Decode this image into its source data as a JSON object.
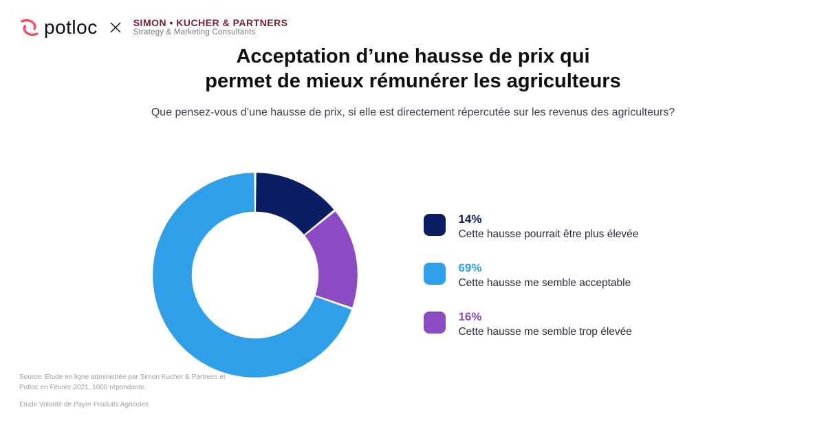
{
  "logos": {
    "potloc_word": "potloc",
    "potloc_mark_color": "#ff4560",
    "sk_line_1": "SIMON • KUCHER & PARTNERS",
    "sk_line_2": "Strategy & Marketing Consultants",
    "sk_color": "#7a1e2e",
    "cross_color": "#0a0a14"
  },
  "title": {
    "line1": "Acceptation d’une hausse de prix qui",
    "line2": "permet de mieux rémunérer les agriculteurs",
    "fontsize": 29,
    "color": "#0f0f0f"
  },
  "subtitle": {
    "text": "Que pensez-vous d’une hausse de prix, si elle est directement répercutée sur les revenus des agriculteurs?",
    "fontsize": 16,
    "color": "#404050"
  },
  "chart": {
    "type": "donut",
    "inner_radius_ratio": 0.62,
    "start_angle_deg": 0,
    "background_color": "#ffffff",
    "slices": [
      {
        "key": "higher",
        "value": 14,
        "color": "#0b1e63",
        "pct_label": "14%",
        "label": "Cette hausse pourrait être plus élevée"
      },
      {
        "key": "too_high",
        "value": 16,
        "color": "#8b4bc2",
        "pct_label": "16%",
        "label": "Cette hausse me semble trop élevée"
      },
      {
        "key": "acceptable",
        "value": 69,
        "color": "#2e9fe8",
        "pct_label": "69%",
        "label": "Cette hausse me semble acceptable"
      }
    ],
    "slice_gap_deg": 1.3,
    "legend_order": [
      "higher",
      "acceptable",
      "too_high"
    ],
    "legend_swatch_radius": 8,
    "legend_pct_fontsize": 17,
    "legend_label_fontsize": 15.5,
    "legend_label_color": "#2a2a3a"
  },
  "footnote": {
    "line1": "Source: Étude en ligne administrée par Simon Kucher & Partners et Potloc en Février 2021, 1000 répondants.",
    "line2": "Étude Volonté de Payer Produits Agricoles",
    "fontsize": 10,
    "color": "#a0a0a8"
  }
}
